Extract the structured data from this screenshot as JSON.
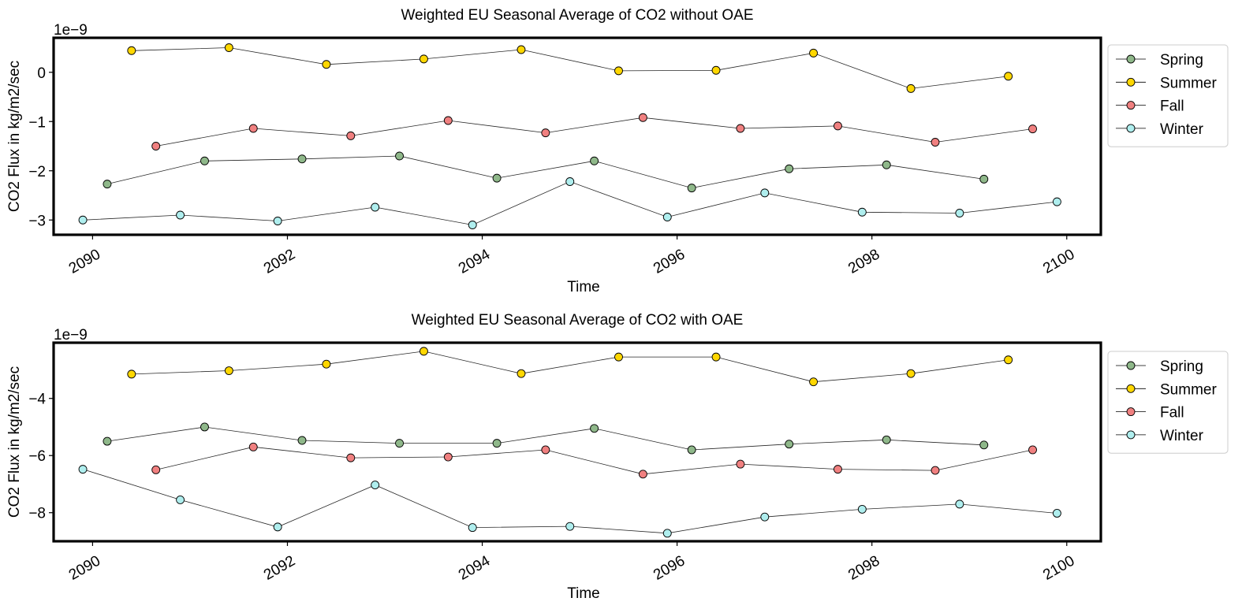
{
  "chart_data": [
    {
      "type": "line",
      "title": "Weighted EU Seasonal Average of CO2 without OAE",
      "xlabel": "Time",
      "ylabel": "CO2 Flux in kg/m2/sec",
      "offset_text": "1e−9",
      "xlim": [
        2089.6,
        2100.35
      ],
      "ylim": [
        -3.3,
        0.7
      ],
      "xticks": [
        2090,
        2092,
        2094,
        2096,
        2098,
        2100
      ],
      "xtick_labels": [
        "2090",
        "2092",
        "2094",
        "2096",
        "2098",
        "2100"
      ],
      "yticks": [
        -3,
        -2,
        -1,
        0
      ],
      "ytick_labels": [
        "−3",
        "−2",
        "−1",
        "0"
      ],
      "legend_position": "outside-right",
      "grid": false,
      "series": [
        {
          "name": "Spring",
          "color": "#8fb88a",
          "x": [
            2090.15,
            2091.15,
            2092.15,
            2093.15,
            2094.15,
            2095.15,
            2096.15,
            2097.15,
            2098.15,
            2099.15
          ],
          "values": [
            -2.27,
            -1.8,
            -1.76,
            -1.7,
            -2.15,
            -1.8,
            -2.35,
            -1.96,
            -1.88,
            -2.17
          ]
        },
        {
          "name": "Summer",
          "color": "#ffd700",
          "x": [
            2090.4,
            2091.4,
            2092.4,
            2093.4,
            2094.4,
            2095.4,
            2096.4,
            2097.4,
            2098.4,
            2099.4
          ],
          "values": [
            0.44,
            0.5,
            0.16,
            0.27,
            0.46,
            0.03,
            0.04,
            0.39,
            -0.33,
            -0.08
          ]
        },
        {
          "name": "Fall",
          "color": "#f08080",
          "x": [
            2090.65,
            2091.65,
            2092.65,
            2093.65,
            2094.65,
            2095.65,
            2096.65,
            2097.65,
            2098.65,
            2099.65
          ],
          "values": [
            -1.5,
            -1.14,
            -1.29,
            -0.98,
            -1.23,
            -0.92,
            -1.14,
            -1.09,
            -1.42,
            -1.15
          ]
        },
        {
          "name": "Winter",
          "color": "#afeeee",
          "x": [
            2089.9,
            2090.9,
            2091.9,
            2092.9,
            2093.9,
            2094.9,
            2095.9,
            2096.9,
            2097.9,
            2098.9,
            2099.9
          ],
          "values": [
            -3.0,
            -2.9,
            -3.02,
            -2.74,
            -3.1,
            -2.22,
            -2.94,
            -2.45,
            -2.84,
            -2.86,
            -2.63
          ]
        }
      ]
    },
    {
      "type": "line",
      "title": "Weighted EU Seasonal Average of CO2 with OAE",
      "xlabel": "Time",
      "ylabel": "CO2 Flux in kg/m2/sec",
      "offset_text": "1e−9",
      "xlim": [
        2089.6,
        2100.35
      ],
      "ylim": [
        -9.0,
        -2.05
      ],
      "xticks": [
        2090,
        2092,
        2094,
        2096,
        2098,
        2100
      ],
      "xtick_labels": [
        "2090",
        "2092",
        "2094",
        "2096",
        "2098",
        "2100"
      ],
      "yticks": [
        -8,
        -6,
        -4
      ],
      "ytick_labels": [
        "−8",
        "−6",
        "−4"
      ],
      "legend_position": "outside-right",
      "grid": false,
      "series": [
        {
          "name": "Spring",
          "color": "#8fb88a",
          "x": [
            2090.15,
            2091.15,
            2092.15,
            2093.15,
            2094.15,
            2095.15,
            2096.15,
            2097.15,
            2098.15,
            2099.15
          ],
          "values": [
            -5.5,
            -5.0,
            -5.47,
            -5.57,
            -5.57,
            -5.05,
            -5.8,
            -5.6,
            -5.45,
            -5.63
          ]
        },
        {
          "name": "Summer",
          "color": "#ffd700",
          "x": [
            2090.4,
            2091.4,
            2092.4,
            2093.4,
            2094.4,
            2095.4,
            2096.4,
            2097.4,
            2098.4,
            2099.4
          ],
          "values": [
            -3.15,
            -3.03,
            -2.8,
            -2.35,
            -3.13,
            -2.55,
            -2.55,
            -3.42,
            -3.13,
            -2.65
          ]
        },
        {
          "name": "Fall",
          "color": "#f08080",
          "x": [
            2090.65,
            2091.65,
            2092.65,
            2093.65,
            2094.65,
            2095.65,
            2096.65,
            2097.65,
            2098.65,
            2099.65
          ],
          "values": [
            -6.5,
            -5.7,
            -6.08,
            -6.05,
            -5.8,
            -6.65,
            -6.3,
            -6.48,
            -6.52,
            -5.8
          ]
        },
        {
          "name": "Winter",
          "color": "#afeeee",
          "x": [
            2089.9,
            2090.9,
            2091.9,
            2092.9,
            2093.9,
            2094.9,
            2095.9,
            2096.9,
            2097.9,
            2098.9,
            2099.9
          ],
          "values": [
            -6.48,
            -7.55,
            -8.5,
            -7.03,
            -8.52,
            -8.48,
            -8.72,
            -8.15,
            -7.88,
            -7.7,
            -8.02
          ]
        }
      ]
    }
  ]
}
